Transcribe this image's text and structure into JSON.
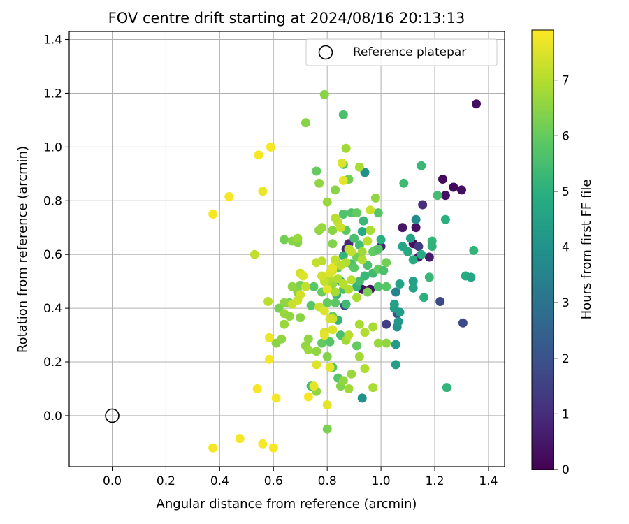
{
  "chart_data": {
    "type": "scatter",
    "title": "FOV centre drift starting at 2024/08/16 20:13:13",
    "xlabel": "Angular distance from reference (arcmin)",
    "ylabel": "Rotation from reference (arcmin)",
    "xlim": [
      -0.16,
      1.46
    ],
    "ylim": [
      -0.19,
      1.43
    ],
    "xticks": [
      "0.0",
      "0.2",
      "0.4",
      "0.6",
      "0.8",
      "1.0",
      "1.2",
      "1.4"
    ],
    "yticks": [
      "0.0",
      "0.2",
      "0.4",
      "0.6",
      "0.8",
      "1.0",
      "1.2",
      "1.4"
    ],
    "grid": true,
    "legend": {
      "position": "top-right",
      "entries": [
        "Reference platepar"
      ]
    },
    "reference_point": {
      "x": 0.0,
      "y": 0.0
    },
    "colorbar": {
      "label": "Hours from first FF file",
      "range": [
        0,
        7.9
      ],
      "ticks": [
        "0",
        "1",
        "2",
        "3",
        "4",
        "5",
        "6",
        "7"
      ],
      "colormap": "viridis"
    },
    "points": [
      [
        1.355,
        1.16,
        0.3
      ],
      [
        1.3,
        0.84,
        0.3
      ],
      [
        1.27,
        0.85,
        0.2
      ],
      [
        1.23,
        0.88,
        0.2
      ],
      [
        1.24,
        0.82,
        0.3
      ],
      [
        1.155,
        0.785,
        1.1
      ],
      [
        1.08,
        0.7,
        0.5
      ],
      [
        1.13,
        0.7,
        0.4
      ],
      [
        1.12,
        0.64,
        0.3
      ],
      [
        1.14,
        0.63,
        1.4
      ],
      [
        1.14,
        0.59,
        0.5
      ],
      [
        1.18,
        0.59,
        0.6
      ],
      [
        1.0,
        0.63,
        0.8
      ],
      [
        0.88,
        0.64,
        0.9
      ],
      [
        0.96,
        0.47,
        0.4
      ],
      [
        0.93,
        0.47,
        0.4
      ],
      [
        0.87,
        0.62,
        0.8
      ],
      [
        1.22,
        0.425,
        1.8
      ],
      [
        1.305,
        0.345,
        1.8
      ],
      [
        1.06,
        0.38,
        1.9
      ],
      [
        0.865,
        0.41,
        1.8
      ],
      [
        0.87,
        0.29,
        2.3
      ],
      [
        1.13,
        0.73,
        3.8
      ],
      [
        1.02,
        0.34,
        1.5
      ],
      [
        1.055,
        0.46,
        3.5
      ],
      [
        0.94,
        0.905,
        4.0
      ],
      [
        0.93,
        0.065,
        4.0
      ],
      [
        1.05,
        0.4,
        4.4
      ],
      [
        1.05,
        0.415,
        4.5
      ],
      [
        1.055,
        0.265,
        4.3
      ],
      [
        1.055,
        0.19,
        4.5
      ],
      [
        1.07,
        0.385,
        4.4
      ],
      [
        1.06,
        0.33,
        4.0
      ],
      [
        1.065,
        0.35,
        4.2
      ],
      [
        1.07,
        0.49,
        4.6
      ],
      [
        1.1,
        0.61,
        4.8
      ],
      [
        1.11,
        0.66,
        4.6
      ],
      [
        1.12,
        0.58,
        4.9
      ],
      [
        1.08,
        0.63,
        4.7
      ],
      [
        1.12,
        0.5,
        4.5
      ],
      [
        1.12,
        0.475,
        4.6
      ],
      [
        1.15,
        0.6,
        4.9
      ],
      [
        1.16,
        0.44,
        5.0
      ],
      [
        1.19,
        0.65,
        5.2
      ],
      [
        1.19,
        0.63,
        5.1
      ],
      [
        1.18,
        0.515,
        5.3
      ],
      [
        1.15,
        0.93,
        5.3
      ],
      [
        1.085,
        0.865,
        5.4
      ],
      [
        1.21,
        0.82,
        5.5
      ],
      [
        1.24,
        0.73,
        5.0
      ],
      [
        1.345,
        0.615,
        5.2
      ],
      [
        1.315,
        0.52,
        4.9
      ],
      [
        1.335,
        0.515,
        4.7
      ],
      [
        1.245,
        0.105,
        5.2
      ],
      [
        1.0,
        0.655,
        5.0
      ],
      [
        0.98,
        0.615,
        5.2
      ],
      [
        0.93,
        0.685,
        4.9
      ],
      [
        0.935,
        0.725,
        5.3
      ],
      [
        0.9,
        0.66,
        5.6
      ],
      [
        0.92,
        0.635,
        5.5
      ],
      [
        0.89,
        0.565,
        5.6
      ],
      [
        0.86,
        0.595,
        5.2
      ],
      [
        0.84,
        0.55,
        5.7
      ],
      [
        0.85,
        0.5,
        4.9
      ],
      [
        0.86,
        0.47,
        5.6
      ],
      [
        0.835,
        0.45,
        5.1
      ],
      [
        0.87,
        0.415,
        5.4
      ],
      [
        0.91,
        0.48,
        5.2
      ],
      [
        0.92,
        0.5,
        5.5
      ],
      [
        0.94,
        0.52,
        5.3
      ],
      [
        0.95,
        0.56,
        5.6
      ],
      [
        0.97,
        0.53,
        5.4
      ],
      [
        0.99,
        0.545,
        6.0
      ],
      [
        1.01,
        0.54,
        5.6
      ],
      [
        1.02,
        0.57,
        6.2
      ],
      [
        1.02,
        0.48,
        5.8
      ],
      [
        0.99,
        0.48,
        5.7
      ],
      [
        0.95,
        0.46,
        6.3
      ],
      [
        0.86,
        1.12,
        5.6
      ],
      [
        0.86,
        0.935,
        5.8
      ],
      [
        0.88,
        0.88,
        6.2
      ],
      [
        0.86,
        0.75,
        5.7
      ],
      [
        0.87,
        0.69,
        5.9
      ],
      [
        0.89,
        0.755,
        5.7
      ],
      [
        0.91,
        0.755,
        6.0
      ],
      [
        0.99,
        0.755,
        5.8
      ],
      [
        0.97,
        0.61,
        6.0
      ],
      [
        0.99,
        0.62,
        5.8
      ],
      [
        0.85,
        0.3,
        5.6
      ],
      [
        0.84,
        0.355,
        5.2
      ],
      [
        0.83,
        0.42,
        5.9
      ],
      [
        0.8,
        0.42,
        6.0
      ],
      [
        0.82,
        0.37,
        6.1
      ],
      [
        0.78,
        0.27,
        6.0
      ],
      [
        0.81,
        0.275,
        5.8
      ],
      [
        0.74,
        0.41,
        5.8
      ],
      [
        0.75,
        0.48,
        5.9
      ],
      [
        0.78,
        0.46,
        6.1
      ],
      [
        0.74,
        0.11,
        5.5
      ],
      [
        0.82,
        0.18,
        5.8
      ],
      [
        0.84,
        0.14,
        5.8
      ],
      [
        0.91,
        0.26,
        6.0
      ],
      [
        0.91,
        0.59,
        6.2
      ],
      [
        0.9,
        0.55,
        5.9
      ],
      [
        0.76,
        0.91,
        6.0
      ],
      [
        0.79,
        1.195,
        6.5
      ],
      [
        0.72,
        1.09,
        6.5
      ],
      [
        0.77,
        0.865,
        6.6
      ],
      [
        0.8,
        0.795,
        6.7
      ],
      [
        0.83,
        0.84,
        6.5
      ],
      [
        0.87,
        0.995,
        6.8
      ],
      [
        0.92,
        0.925,
        6.9
      ],
      [
        0.98,
        0.81,
        6.6
      ],
      [
        0.82,
        0.64,
        6.4
      ],
      [
        0.82,
        0.69,
        6.5
      ],
      [
        0.77,
        0.69,
        6.6
      ],
      [
        0.78,
        0.7,
        6.7
      ],
      [
        0.64,
        0.655,
        6.2
      ],
      [
        0.67,
        0.65,
        6.5
      ],
      [
        0.69,
        0.645,
        6.4
      ],
      [
        0.69,
        0.66,
        6.7
      ],
      [
        0.7,
        0.485,
        6.3
      ],
      [
        0.69,
        0.46,
        6.5
      ],
      [
        0.67,
        0.48,
        6.6
      ],
      [
        0.66,
        0.42,
        6.1
      ],
      [
        0.64,
        0.42,
        6.6
      ],
      [
        0.62,
        0.4,
        6.3
      ],
      [
        0.64,
        0.38,
        6.7
      ],
      [
        0.66,
        0.37,
        6.6
      ],
      [
        0.64,
        0.34,
        6.7
      ],
      [
        0.63,
        0.285,
        6.6
      ],
      [
        0.61,
        0.27,
        6.5
      ],
      [
        0.7,
        0.365,
        6.5
      ],
      [
        0.72,
        0.26,
        6.6
      ],
      [
        0.73,
        0.245,
        6.7
      ],
      [
        0.73,
        0.285,
        6.6
      ],
      [
        0.76,
        0.24,
        6.6
      ],
      [
        0.76,
        0.09,
        6.6
      ],
      [
        0.8,
        0.22,
        6.4
      ],
      [
        0.8,
        -0.05,
        6.3
      ],
      [
        0.85,
        0.11,
        6.4
      ],
      [
        0.86,
        0.13,
        6.6
      ],
      [
        0.88,
        0.1,
        6.8
      ],
      [
        0.89,
        0.155,
        6.7
      ],
      [
        0.94,
        0.175,
        7.0
      ],
      [
        0.97,
        0.105,
        6.9
      ],
      [
        0.92,
        0.22,
        6.8
      ],
      [
        0.94,
        0.31,
        7.0
      ],
      [
        0.97,
        0.33,
        6.9
      ],
      [
        0.99,
        0.27,
        6.7
      ],
      [
        1.02,
        0.27,
        6.6
      ],
      [
        0.92,
        0.34,
        6.9
      ],
      [
        0.87,
        0.28,
        6.8
      ],
      [
        0.88,
        0.3,
        7.1
      ],
      [
        0.83,
        0.46,
        6.9
      ],
      [
        0.82,
        0.49,
        6.7
      ],
      [
        0.81,
        0.51,
        7.0
      ],
      [
        0.8,
        0.49,
        6.9
      ],
      [
        0.79,
        0.5,
        7.2
      ],
      [
        0.84,
        0.51,
        7.0
      ],
      [
        0.86,
        0.49,
        7.1
      ],
      [
        0.88,
        0.47,
        7.0
      ],
      [
        0.89,
        0.505,
        7.1
      ],
      [
        0.91,
        0.44,
        6.9
      ],
      [
        0.93,
        0.58,
        7.0
      ],
      [
        0.93,
        0.61,
        6.8
      ],
      [
        0.95,
        0.65,
        7.1
      ],
      [
        0.96,
        0.69,
        6.9
      ],
      [
        0.96,
        0.765,
        7.3
      ],
      [
        0.84,
        0.72,
        7.2
      ],
      [
        0.85,
        0.7,
        7.3
      ],
      [
        0.83,
        0.735,
        7.1
      ],
      [
        0.88,
        0.62,
        7.1
      ],
      [
        0.89,
        0.61,
        7.2
      ],
      [
        0.87,
        0.57,
        7.0
      ],
      [
        0.85,
        0.56,
        7.1
      ],
      [
        0.83,
        0.58,
        7.2
      ],
      [
        0.82,
        0.54,
        7.3
      ],
      [
        0.78,
        0.575,
        7.1
      ],
      [
        0.76,
        0.57,
        7.2
      ],
      [
        0.78,
        0.52,
        7.4
      ],
      [
        0.77,
        0.405,
        7.3
      ],
      [
        0.79,
        0.39,
        7.5
      ],
      [
        0.8,
        0.47,
        7.6
      ],
      [
        0.81,
        0.53,
        7.5
      ],
      [
        0.82,
        0.55,
        7.6
      ],
      [
        0.72,
        0.48,
        7.2
      ],
      [
        0.7,
        0.53,
        7.4
      ],
      [
        0.71,
        0.52,
        7.5
      ],
      [
        0.7,
        0.45,
        7.4
      ],
      [
        0.69,
        0.43,
        7.3
      ],
      [
        0.67,
        0.415,
        7.3
      ],
      [
        0.58,
        0.425,
        7.1
      ],
      [
        0.53,
        0.6,
        7.2
      ],
      [
        0.82,
        0.36,
        7.3
      ],
      [
        0.81,
        0.36,
        7.4
      ],
      [
        0.82,
        0.32,
        7.5
      ],
      [
        0.79,
        0.31,
        7.4
      ],
      [
        0.79,
        0.3,
        7.6
      ],
      [
        0.76,
        0.19,
        7.5
      ],
      [
        0.81,
        0.18,
        7.6
      ],
      [
        0.75,
        0.11,
        7.6
      ],
      [
        0.8,
        0.04,
        7.6
      ],
      [
        0.73,
        0.07,
        7.8
      ],
      [
        0.855,
        0.94,
        7.5
      ],
      [
        0.86,
        0.875,
        7.6
      ],
      [
        0.59,
        1.0,
        7.8
      ],
      [
        0.545,
        0.97,
        7.8
      ],
      [
        0.56,
        0.835,
        7.7
      ],
      [
        0.435,
        0.815,
        7.8
      ],
      [
        0.375,
        0.75,
        7.8
      ],
      [
        0.585,
        0.29,
        7.7
      ],
      [
        0.585,
        0.21,
        7.8
      ],
      [
        0.54,
        0.1,
        7.8
      ],
      [
        0.61,
        0.065,
        7.8
      ],
      [
        0.375,
        -0.12,
        7.8
      ],
      [
        0.475,
        -0.085,
        7.8
      ],
      [
        0.56,
        -0.105,
        7.8
      ],
      [
        0.6,
        -0.12,
        7.8
      ]
    ]
  }
}
